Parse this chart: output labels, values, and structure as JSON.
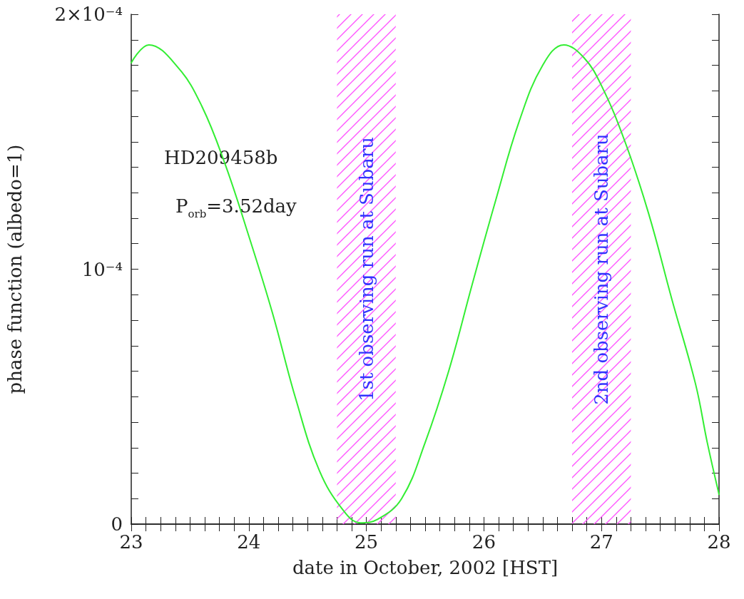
{
  "chart_data": {
    "type": "line",
    "xlabel": "date in October, 2002 [HST]",
    "ylabel": "phase function (albedo=1)",
    "annotations": [
      "HD209458b",
      "P$_{orb}$=3.52day"
    ],
    "x": [
      23,
      23.15,
      23.4,
      23.6,
      23.8,
      24.0,
      24.2,
      24.4,
      24.6,
      24.8,
      24.95,
      25.1,
      25.3,
      25.5,
      25.7,
      25.9,
      26.1,
      26.3,
      26.5,
      26.68,
      26.85,
      27.0,
      27.2,
      27.4,
      27.6,
      27.8,
      27.9,
      28
    ],
    "series": [
      {
        "color": "#33ee33",
        "values": [
          0.000181,
          0.000188,
          0.000179,
          0.000164,
          0.000141,
          0.000113,
          8.3e-05,
          4.9e-05,
          2.1e-05,
          5.6e-06,
          5e-07,
          2e-06,
          1e-05,
          3.2e-05,
          6e-05,
          9.4e-05,
          0.000127,
          0.000158,
          0.00018,
          0.000188,
          0.000183,
          0.000172,
          0.00015,
          0.000122,
          8.8e-05,
          5.5e-05,
          3.2e-05,
          1.17e-05
        ]
      }
    ],
    "xlim": [
      23,
      28
    ],
    "xticks": [
      23,
      {
        "value": 23.125,
        "label": null
      },
      {
        "value": 23.25,
        "label": null
      },
      {
        "value": 23.375,
        "label": null
      },
      {
        "value": 23.5,
        "label": null
      },
      {
        "value": 23.625,
        "label": null
      },
      {
        "value": 23.75,
        "label": null
      },
      {
        "value": 23.875,
        "label": null
      },
      24,
      {
        "value": 24.125,
        "label": null
      },
      {
        "value": 24.25,
        "label": null
      },
      {
        "value": 24.375,
        "label": null
      },
      {
        "value": 24.5,
        "label": null
      },
      {
        "value": 24.625,
        "label": null
      },
      {
        "value": 24.75,
        "label": null
      },
      {
        "value": 24.875,
        "label": null
      },
      25,
      {
        "value": 25.125,
        "label": null
      },
      {
        "value": 25.25,
        "label": null
      },
      {
        "value": 25.375,
        "label": null
      },
      {
        "value": 25.5,
        "label": null
      },
      {
        "value": 25.625,
        "label": null
      },
      {
        "value": 25.75,
        "label": null
      },
      {
        "value": 25.875,
        "label": null
      },
      26,
      {
        "value": 26.125,
        "label": null
      },
      {
        "value": 26.25,
        "label": null
      },
      {
        "value": 26.375,
        "label": null
      },
      {
        "value": 26.5,
        "label": null
      },
      {
        "value": 26.625,
        "label": null
      },
      {
        "value": 26.75,
        "label": null
      },
      {
        "value": 26.875,
        "label": null
      },
      27,
      {
        "value": 27.125,
        "label": null
      },
      {
        "value": 27.25,
        "label": null
      },
      {
        "value": 27.375,
        "label": null
      },
      {
        "value": 27.5,
        "label": null
      },
      {
        "value": 27.625,
        "label": null
      },
      {
        "value": 27.75,
        "label": null
      },
      {
        "value": 27.875,
        "label": null
      },
      28
    ],
    "ylim": [
      0,
      0.0002
    ],
    "yticks": [
      0,
      {
        "value": 1e-05,
        "label": null
      },
      {
        "value": 2e-05,
        "label": null
      },
      {
        "value": 3e-05,
        "label": null
      },
      {
        "value": 4e-05,
        "label": null
      },
      {
        "value": 5e-05,
        "label": null
      },
      {
        "value": 6e-05,
        "label": null
      },
      {
        "value": 7e-05,
        "label": null
      },
      {
        "value": 8e-05,
        "label": null
      },
      {
        "value": 9e-05,
        "label": null
      },
      {
        "value": 0.0001,
        "label": "10⁻⁴"
      },
      {
        "value": 0.00011,
        "label": null
      },
      {
        "value": 0.00012,
        "label": null
      },
      {
        "value": 0.00013,
        "label": null
      },
      {
        "value": 0.00014,
        "label": null
      },
      {
        "value": 0.00015,
        "label": null
      },
      {
        "value": 0.00016,
        "label": null
      },
      {
        "value": 0.00017,
        "label": null
      },
      {
        "value": 0.00018,
        "label": null
      },
      {
        "value": 0.00019,
        "label": null
      },
      {
        "value": 0.0002,
        "label": "2×10⁻⁴"
      }
    ],
    "bands": [
      {
        "axis": "x",
        "from": 24.75,
        "to": 25.25,
        "label": "1st observing run at Subaru",
        "color": "#ff55ff"
      },
      {
        "axis": "x",
        "from": 26.75,
        "to": 27.25,
        "label": "2nd observing run at Subaru",
        "color": "#ff55ff"
      }
    ],
    "grid": false,
    "marker": "none",
    "line_style": "solid"
  }
}
